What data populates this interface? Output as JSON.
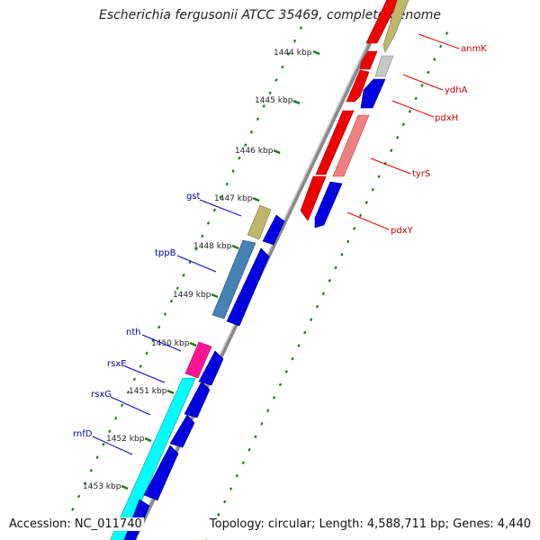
{
  "title": "Escherichia fergusonii ATCC 35469, complete genome",
  "accession_text": "Accession: NC_011740",
  "topology_text": "Topology: circular; Length: 4,588,711 bp; Genes: 4,440",
  "colors": {
    "backbone": "#8a8a8a",
    "tick": "#1a7a1a",
    "cds_blue": "#0000e0",
    "cds_red": "#ee0000",
    "label_left": "#0000aa",
    "label_right": "#cc0000"
  },
  "scale_labels": [
    "1444 kbp",
    "1445 kbp",
    "1446 kbp",
    "1447 kbp",
    "1448 kbp",
    "1449 kbp",
    "1450 kbp",
    "1451 kbp",
    "1452 kbp",
    "1453 kbp"
  ],
  "gene_labels_left": [
    "gst",
    "tppB",
    "nth",
    "rsxE",
    "rsxG",
    "rnfD"
  ],
  "gene_labels_right": [
    "anmK",
    "ydhA",
    "pdxH",
    "tyrS",
    "pdxY"
  ]
}
